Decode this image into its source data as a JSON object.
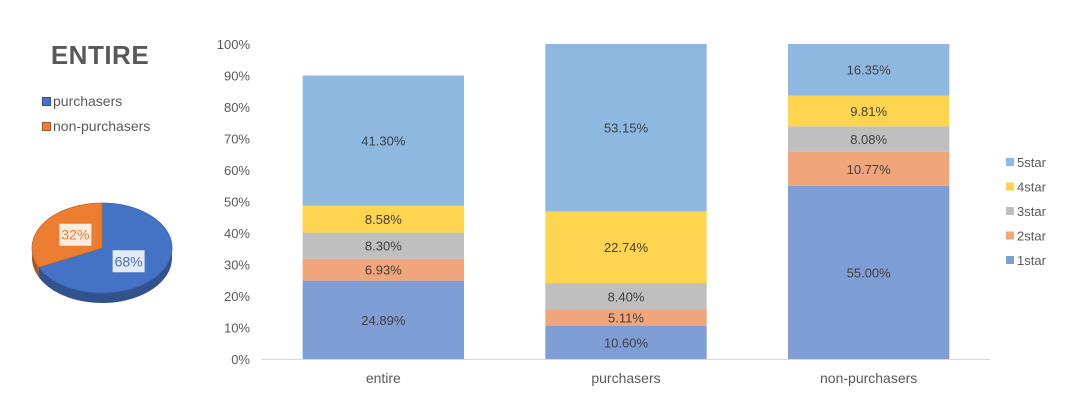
{
  "chart_data": [
    {
      "type": "pie",
      "title": "ENTIRE",
      "slices": [
        {
          "label": "purchasers",
          "value": 68,
          "data_label": "68%",
          "color": "#4472c4"
        },
        {
          "label": "non-purchasers",
          "value": 32,
          "data_label": "32%",
          "color": "#ed7d31"
        }
      ],
      "legend": "top-left",
      "style": "3d"
    },
    {
      "type": "bar",
      "stacked": true,
      "percent": true,
      "categories": [
        "entire",
        "purchasers",
        "non-purchasers"
      ],
      "series": [
        {
          "name": "1star",
          "color": "#7f9ed6",
          "values": [
            24.89,
            10.6,
            55.0
          ],
          "labels": [
            "24.89%",
            "10.60%",
            "55.00%"
          ]
        },
        {
          "name": "2star",
          "color": "#f0a57a",
          "values": [
            6.93,
            5.11,
            10.77
          ],
          "labels": [
            "6.93%",
            "5.11%",
            "10.77%"
          ]
        },
        {
          "name": "3star",
          "color": "#bfbfbf",
          "values": [
            8.3,
            8.4,
            8.08
          ],
          "labels": [
            "8.30%",
            "8.40%",
            "8.08%"
          ]
        },
        {
          "name": "4star",
          "color": "#ffd54f",
          "values": [
            8.58,
            22.74,
            9.81
          ],
          "labels": [
            "8.58%",
            "22.74%",
            "9.81%"
          ]
        },
        {
          "name": "5star",
          "color": "#8eb8e0",
          "values": [
            41.3,
            53.15,
            16.35
          ],
          "labels": [
            "41.30%",
            "53.15%",
            "16.35%"
          ]
        }
      ],
      "ylim": [
        0,
        100
      ],
      "yticks": [
        "0%",
        "10%",
        "20%",
        "30%",
        "40%",
        "50%",
        "60%",
        "70%",
        "80%",
        "90%",
        "100%"
      ],
      "grid": false,
      "legend": "right"
    }
  ]
}
